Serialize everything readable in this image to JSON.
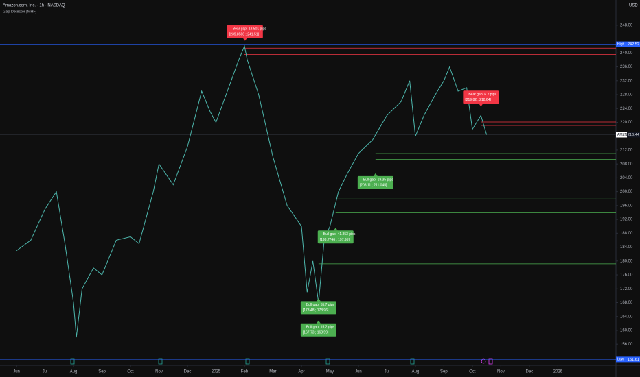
{
  "header": {
    "symbol": "Amazon.com, Inc. · 1h · NASDAQ",
    "indicator": "Gap Detector [MHF]",
    "currency": "USD"
  },
  "chart_data": {
    "type": "line",
    "series": [
      {
        "name": "AMZN",
        "color": "#4db6ac",
        "x": [
          0,
          0.5,
          1,
          1.4,
          1.7,
          2,
          2.1,
          2.3,
          2.7,
          3,
          3.5,
          4,
          4.3,
          4.8,
          5,
          5.5,
          6,
          6.5,
          6.8,
          7,
          7.4,
          7.8,
          8,
          8.1,
          8.5,
          9,
          9.5,
          10,
          10.2,
          10.4,
          10.6,
          10.8,
          11,
          11.3,
          11.6,
          12,
          12.5,
          13,
          13.5,
          13.8,
          14,
          14.3,
          14.7,
          15,
          15.2,
          15.5,
          15.8,
          16,
          16.3,
          16.5
        ],
        "values": [
          183,
          186,
          195,
          200,
          185,
          168,
          158,
          172,
          178,
          176,
          186,
          187,
          185,
          200,
          208,
          202,
          213,
          229,
          223,
          220,
          229,
          238,
          242,
          238,
          228,
          210,
          196,
          190,
          171,
          180,
          168,
          186,
          190,
          200,
          205,
          211,
          215,
          222,
          226,
          232,
          216,
          222,
          228,
          232,
          236,
          229,
          230,
          218,
          222,
          216.44
        ]
      }
    ],
    "xlim": [
      -0.58,
      21.04
    ],
    "xticks": [
      {
        "value": 0,
        "label": "Jun"
      },
      {
        "value": 1,
        "label": "Jul"
      },
      {
        "value": 2,
        "label": "Aug"
      },
      {
        "value": 3,
        "label": "Sep"
      },
      {
        "value": 4,
        "label": "Oct"
      },
      {
        "value": 5,
        "label": "Nov"
      },
      {
        "value": 6,
        "label": "Dec"
      },
      {
        "value": 7,
        "label": "2025"
      },
      {
        "value": 8,
        "label": "Feb"
      },
      {
        "value": 9,
        "label": "Mar"
      },
      {
        "value": 10,
        "label": "Apr"
      },
      {
        "value": 11,
        "label": "May"
      },
      {
        "value": 12,
        "label": "Jun"
      },
      {
        "value": 13,
        "label": "Jul"
      },
      {
        "value": 14,
        "label": "Aug"
      },
      {
        "value": 15,
        "label": "Sep"
      },
      {
        "value": 16,
        "label": "Oct"
      },
      {
        "value": 17,
        "label": "Nov"
      },
      {
        "value": 18,
        "label": "Dec"
      },
      {
        "value": 19,
        "label": "2026"
      }
    ],
    "ylim": [
      150.5,
      254.3
    ],
    "yticks": [
      {
        "value": 156,
        "label": "156.00"
      },
      {
        "value": 160,
        "label": "160.00"
      },
      {
        "value": 164,
        "label": "164.00"
      },
      {
        "value": 168,
        "label": "168.00"
      },
      {
        "value": 172,
        "label": "172.00"
      },
      {
        "value": 176,
        "label": "176.00"
      },
      {
        "value": 180,
        "label": "180.00"
      },
      {
        "value": 184,
        "label": "184.00"
      },
      {
        "value": 188,
        "label": "188.00"
      },
      {
        "value": 192,
        "label": "192.00"
      },
      {
        "value": 196,
        "label": "196.00"
      },
      {
        "value": 200,
        "label": "200.00"
      },
      {
        "value": 204,
        "label": "204.00"
      },
      {
        "value": 208,
        "label": "208.00"
      },
      {
        "value": 212,
        "label": "212.00"
      },
      {
        "value": 220,
        "label": "220.00"
      },
      {
        "value": 224,
        "label": "224.00"
      },
      {
        "value": 228,
        "label": "228.00"
      },
      {
        "value": 232,
        "label": "232.00"
      },
      {
        "value": 236,
        "label": "236.00"
      },
      {
        "value": 240,
        "label": "240.00"
      },
      {
        "value": 248,
        "label": "248.00"
      }
    ],
    "price_tags": [
      {
        "label": "High",
        "value": 242.52,
        "color": "#2962ff"
      },
      {
        "label": "AMZN",
        "value": 216.44,
        "color": "#d1d4dc"
      },
      {
        "label": "Low",
        "value": 151.61,
        "color": "#2962ff"
      }
    ],
    "gaps": [
      {
        "kind": "bear",
        "text": "Bear gap: 18.501 pips",
        "range": "[239.8566 ; 241.51]",
        "x0": 7.98,
        "lines": [
          241.4,
          239.6
        ],
        "at": [
          8.02,
          243.5
        ],
        "color": "#f23645"
      },
      {
        "kind": "bear",
        "text": "Bear gap: 6.2 pips",
        "range": "[219.82 ; 218.64]",
        "x0": 16.3,
        "lines": [
          220.1,
          219.1
        ],
        "at": [
          16.3,
          224.6
        ],
        "color": "#f23645"
      },
      {
        "kind": "bull",
        "text": "Bull gap: 19.35 pips",
        "range": "[208.11 ; 211.045]",
        "x0": 12.6,
        "lines": [
          211,
          209.3
        ],
        "at": [
          12.6,
          205.3
        ],
        "color": "#4caf50"
      },
      {
        "kind": "bull",
        "text": "Bull gap: 41.353 pips",
        "range": "[193.7746 ; 197.95]",
        "x0": 11.2,
        "lines": [
          197.9,
          193.9
        ],
        "at": [
          11.2,
          189.6
        ],
        "color": "#4caf50"
      },
      {
        "kind": "bull",
        "text": "Bull gap: 55.7 pips",
        "range": "[173.48 ; 178.96]",
        "x0": 10.6,
        "lines": [
          179.2,
          173.9
        ],
        "at": [
          10.6,
          169.2
        ],
        "color": "#4caf50"
      },
      {
        "kind": "bull",
        "text": "Bull gap: 15.2 pips",
        "range": "[167.73 ; 168.59]",
        "x0": 10.55,
        "lines": [
          169.6,
          168.2
        ],
        "at": [
          10.6,
          162.8
        ],
        "color": "#4caf50"
      }
    ]
  }
}
